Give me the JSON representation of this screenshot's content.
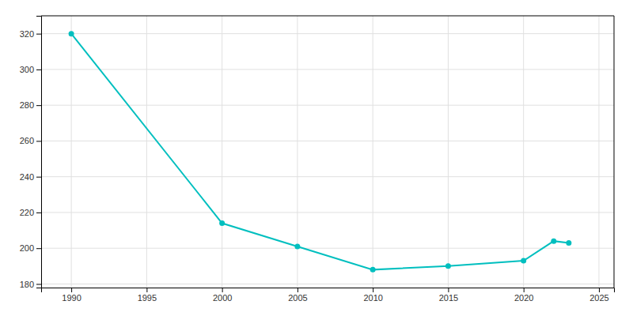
{
  "chart_data": {
    "type": "line",
    "x": [
      1990,
      2000,
      2005,
      2010,
      2015,
      2020,
      2022,
      2023
    ],
    "values": [
      320,
      214,
      201,
      188,
      190,
      193,
      204,
      203
    ],
    "color": "#00BFBF",
    "marker": "circle",
    "xlim": [
      1988,
      2026
    ],
    "ylim": [
      178,
      330
    ],
    "xticks": [
      1990,
      1995,
      2000,
      2005,
      2010,
      2015,
      2020,
      2025
    ],
    "yticks": [
      180,
      200,
      220,
      240,
      260,
      280,
      300,
      320
    ],
    "grid": true
  }
}
